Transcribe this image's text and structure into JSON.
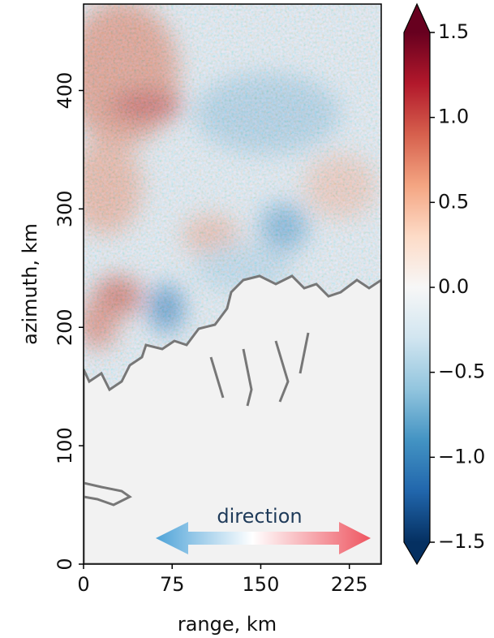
{
  "chart_data": {
    "type": "heatmap",
    "xlabel": "range, km",
    "ylabel": "azimuth, km",
    "xlim": [
      0,
      252
    ],
    "xticks": [
      0,
      75,
      150,
      225
    ],
    "ylim": [
      0,
      473
    ],
    "yticks": [
      0,
      100,
      200,
      300,
      400
    ],
    "annotation": "direction",
    "colormap": [
      "#053061",
      "#2166ac",
      "#4393c3",
      "#92c5de",
      "#d1e5f0",
      "#f7f7f7",
      "#fddbc7",
      "#f4a582",
      "#d6604d",
      "#b2182b",
      "#67001f"
    ],
    "clim": [
      -1.5,
      1.5
    ],
    "cticks": [
      {
        "value": -1.5,
        "label": "−1.5"
      },
      {
        "value": -1.0,
        "label": "−1.0"
      },
      {
        "value": -0.5,
        "label": "−0.5"
      },
      {
        "value": 0,
        "label": "0.0"
      },
      0.5,
      {
        "value": 1.0,
        "label": "1.0"
      },
      1.5
    ]
  }
}
